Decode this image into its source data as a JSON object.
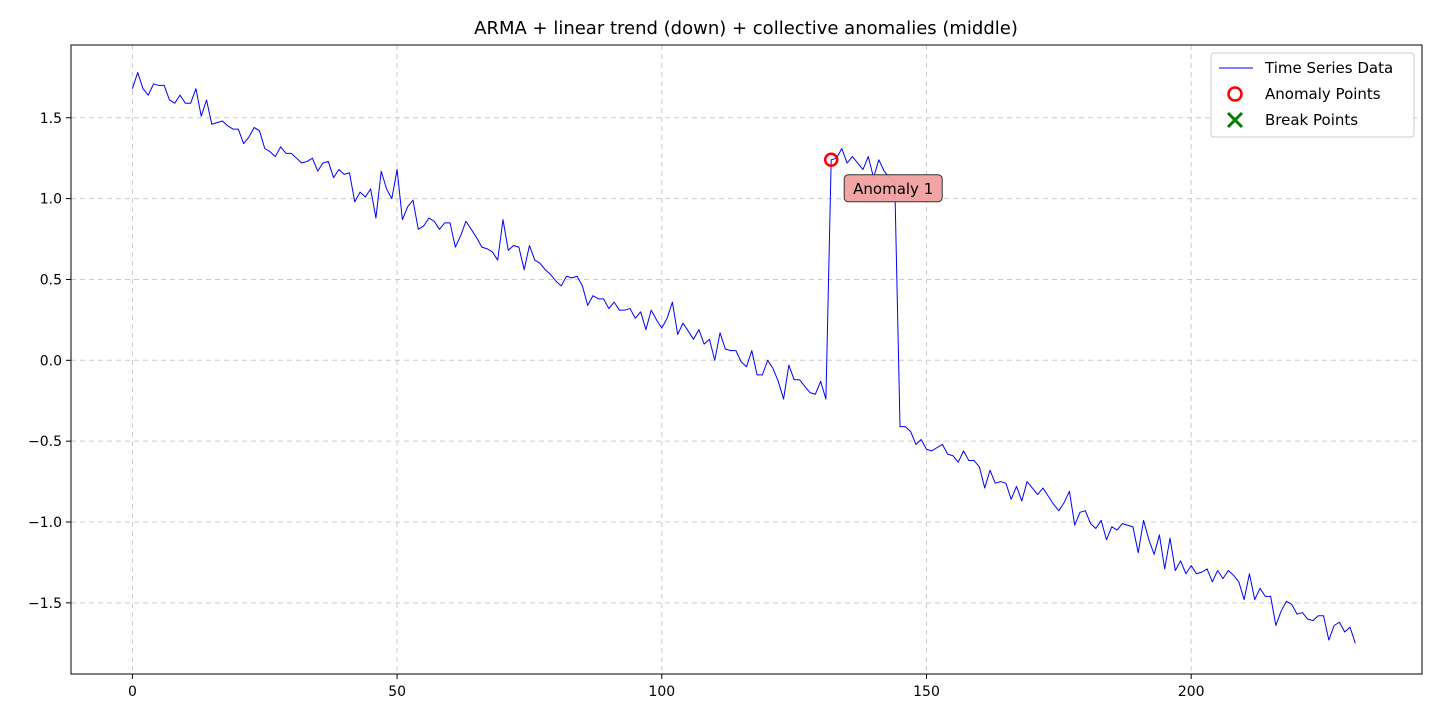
{
  "chart_data": {
    "type": "line",
    "title": "ARMA + linear trend (down) + collective anomalies (middle)",
    "xlabel": "",
    "ylabel": "",
    "xlim": [
      -11.6,
      243.6
    ],
    "ylim": [
      -1.94,
      1.95
    ],
    "xticks": [
      0,
      50,
      100,
      150,
      200
    ],
    "yticks": [
      -1.5,
      -1.0,
      -0.5,
      0.0,
      0.5,
      1.0,
      1.5
    ],
    "xtick_labels": [
      "0",
      "50",
      "100",
      "150",
      "200"
    ],
    "ytick_labels": [
      "−1.5",
      "−1.0",
      "−0.5",
      "0.0",
      "0.5",
      "1.0",
      "1.5"
    ],
    "grid": true,
    "legend_position": "top-right",
    "colors": {
      "series": "#0000ff",
      "anomaly": "#ff0000",
      "break": "#008000",
      "annotation_bg": "#f0a0a0"
    },
    "series": [
      {
        "name": "Time Series Data",
        "y": [
          1.68,
          1.78,
          1.68,
          1.64,
          1.71,
          1.7,
          1.7,
          1.61,
          1.59,
          1.64,
          1.59,
          1.59,
          1.68,
          1.51,
          1.61,
          1.46,
          1.47,
          1.48,
          1.45,
          1.43,
          1.43,
          1.34,
          1.38,
          1.44,
          1.42,
          1.31,
          1.29,
          1.26,
          1.32,
          1.28,
          1.28,
          1.25,
          1.22,
          1.23,
          1.25,
          1.17,
          1.22,
          1.23,
          1.13,
          1.18,
          1.15,
          1.16,
          0.98,
          1.04,
          1.01,
          1.06,
          0.88,
          1.17,
          1.06,
          1.0,
          1.18,
          0.87,
          0.95,
          0.99,
          0.81,
          0.83,
          0.88,
          0.86,
          0.81,
          0.85,
          0.85,
          0.7,
          0.77,
          0.86,
          0.81,
          0.76,
          0.7,
          0.69,
          0.67,
          0.62,
          0.87,
          0.68,
          0.71,
          0.7,
          0.56,
          0.71,
          0.62,
          0.6,
          0.56,
          0.53,
          0.49,
          0.46,
          0.52,
          0.51,
          0.52,
          0.46,
          0.34,
          0.4,
          0.38,
          0.38,
          0.32,
          0.36,
          0.31,
          0.31,
          0.32,
          0.26,
          0.3,
          0.19,
          0.31,
          0.25,
          0.2,
          0.26,
          0.36,
          0.16,
          0.23,
          0.18,
          0.13,
          0.19,
          0.1,
          0.13,
          0.0,
          0.17,
          0.07,
          0.06,
          0.06,
          -0.01,
          -0.04,
          0.06,
          -0.09,
          -0.09,
          0.0,
          -0.05,
          -0.13,
          -0.24,
          -0.03,
          -0.12,
          -0.12,
          -0.16,
          -0.2,
          -0.21,
          -0.13,
          -0.24,
          1.24,
          1.25,
          1.31,
          1.22,
          1.26,
          1.22,
          1.18,
          1.26,
          1.13,
          1.24,
          1.17,
          1.13,
          1.11,
          -0.41,
          -0.41,
          -0.44,
          -0.52,
          -0.49,
          -0.55,
          -0.56,
          -0.54,
          -0.52,
          -0.58,
          -0.59,
          -0.63,
          -0.56,
          -0.62,
          -0.62,
          -0.66,
          -0.79,
          -0.68,
          -0.76,
          -0.75,
          -0.76,
          -0.86,
          -0.78,
          -0.87,
          -0.75,
          -0.79,
          -0.83,
          -0.79,
          -0.84,
          -0.89,
          -0.93,
          -0.88,
          -0.81,
          -1.02,
          -0.94,
          -0.93,
          -1.01,
          -1.04,
          -0.99,
          -1.11,
          -1.03,
          -1.05,
          -1.01,
          -1.02,
          -1.03,
          -1.19,
          -0.99,
          -1.11,
          -1.2,
          -1.08,
          -1.29,
          -1.1,
          -1.3,
          -1.24,
          -1.32,
          -1.27,
          -1.32,
          -1.31,
          -1.29,
          -1.37,
          -1.3,
          -1.35,
          -1.3,
          -1.33,
          -1.37,
          -1.48,
          -1.32,
          -1.48,
          -1.41,
          -1.46,
          -1.46,
          -1.64,
          -1.55,
          -1.49,
          -1.51,
          -1.57,
          -1.56,
          -1.6,
          -1.61,
          -1.58,
          -1.58,
          -1.73,
          -1.64,
          -1.62,
          -1.68,
          -1.65,
          -1.75
        ]
      }
    ],
    "anomaly_points": {
      "name": "Anomaly Points",
      "points": [
        {
          "x": 132,
          "y": 1.24
        }
      ]
    },
    "break_points": {
      "name": "Break Points",
      "points": []
    },
    "annotations": [
      {
        "text": "Anomaly 1",
        "x": 132,
        "y": 1.24
      }
    ]
  }
}
